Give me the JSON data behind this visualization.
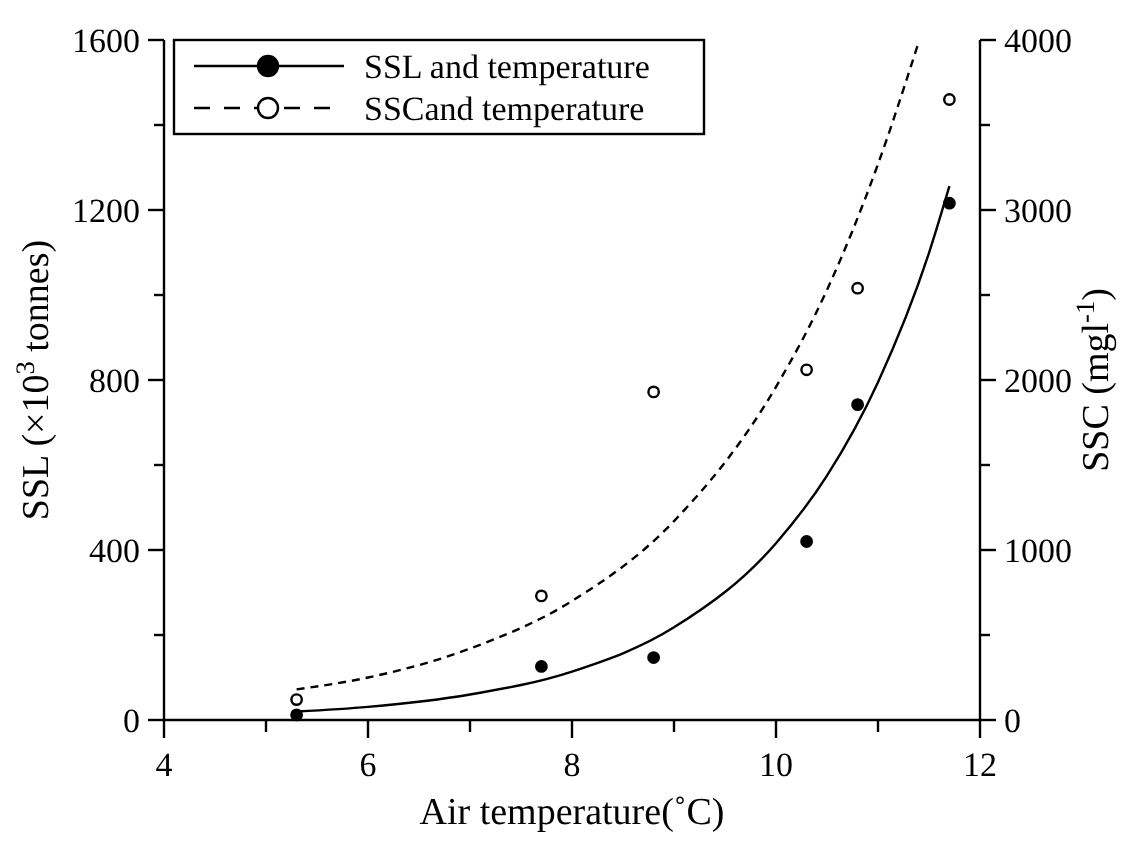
{
  "chart_data": {
    "type": "scatter",
    "xlabel": "Air temperature(˚C)",
    "ylabel": "SSL (×10$^{3}$ tonnes)",
    "y2label": "SSC (mgl$^{-1}$)",
    "xlim": [
      4,
      12
    ],
    "xticks": [
      4,
      {
        "value": 5,
        "label": null
      },
      6,
      {
        "value": 7,
        "label": null
      },
      8,
      {
        "value": 9,
        "label": null
      },
      10,
      {
        "value": 11,
        "label": null
      },
      12
    ],
    "ylim": [
      0,
      1600
    ],
    "yticks": [
      0,
      {
        "value": 200,
        "label": null
      },
      400,
      {
        "value": 600,
        "label": null
      },
      800,
      {
        "value": 1000,
        "label": null
      },
      1200,
      {
        "value": 1400,
        "label": null
      },
      1600
    ],
    "y2lim": [
      0,
      4000
    ],
    "y2ticks": [
      0,
      {
        "value": 500,
        "label": null
      },
      1000,
      {
        "value": 1500,
        "label": null
      },
      2000,
      {
        "value": 2500,
        "label": null
      },
      3000,
      {
        "value": 3500,
        "label": null
      },
      4000
    ],
    "legend": "top left",
    "grid": false,
    "series": [
      {
        "color": "#000000",
        "marker": "circle",
        "x": [
          5.3,
          7.7,
          8.8,
          10.3,
          10.8,
          11.7
        ],
        "values": [
          12,
          126,
          147,
          420,
          742,
          1216
        ]
      },
      {
        "type": "line",
        "name": "SSL and temperature",
        "color": "#000000",
        "line_style": "solid",
        "marker": "none",
        "x": [
          5.3,
          6,
          7,
          8,
          9,
          10,
          10.5,
          11,
          11.5,
          11.7
        ],
        "values": [
          20,
          31,
          60,
          114,
          218,
          416,
          575,
          795,
          1099,
          1256
        ]
      },
      {
        "color": "#ffffff",
        "marker": "circle",
        "axis": "y2",
        "x": [
          5.3,
          7.7,
          8.8,
          10.3,
          10.8,
          11.7
        ],
        "values": [
          120,
          730,
          1930,
          2060,
          2540,
          3650
        ]
      },
      {
        "type": "line",
        "name": "SSCand temperature",
        "color": "#000000",
        "line_style": "dashed",
        "marker": "none",
        "axis": "y2",
        "x": [
          5.3,
          6,
          7,
          8,
          9,
          10,
          10.5,
          11,
          11.4
        ],
        "values": [
          180,
          250,
          420,
          700,
          1170,
          1960,
          2530,
          3270,
          3990
        ]
      }
    ]
  }
}
